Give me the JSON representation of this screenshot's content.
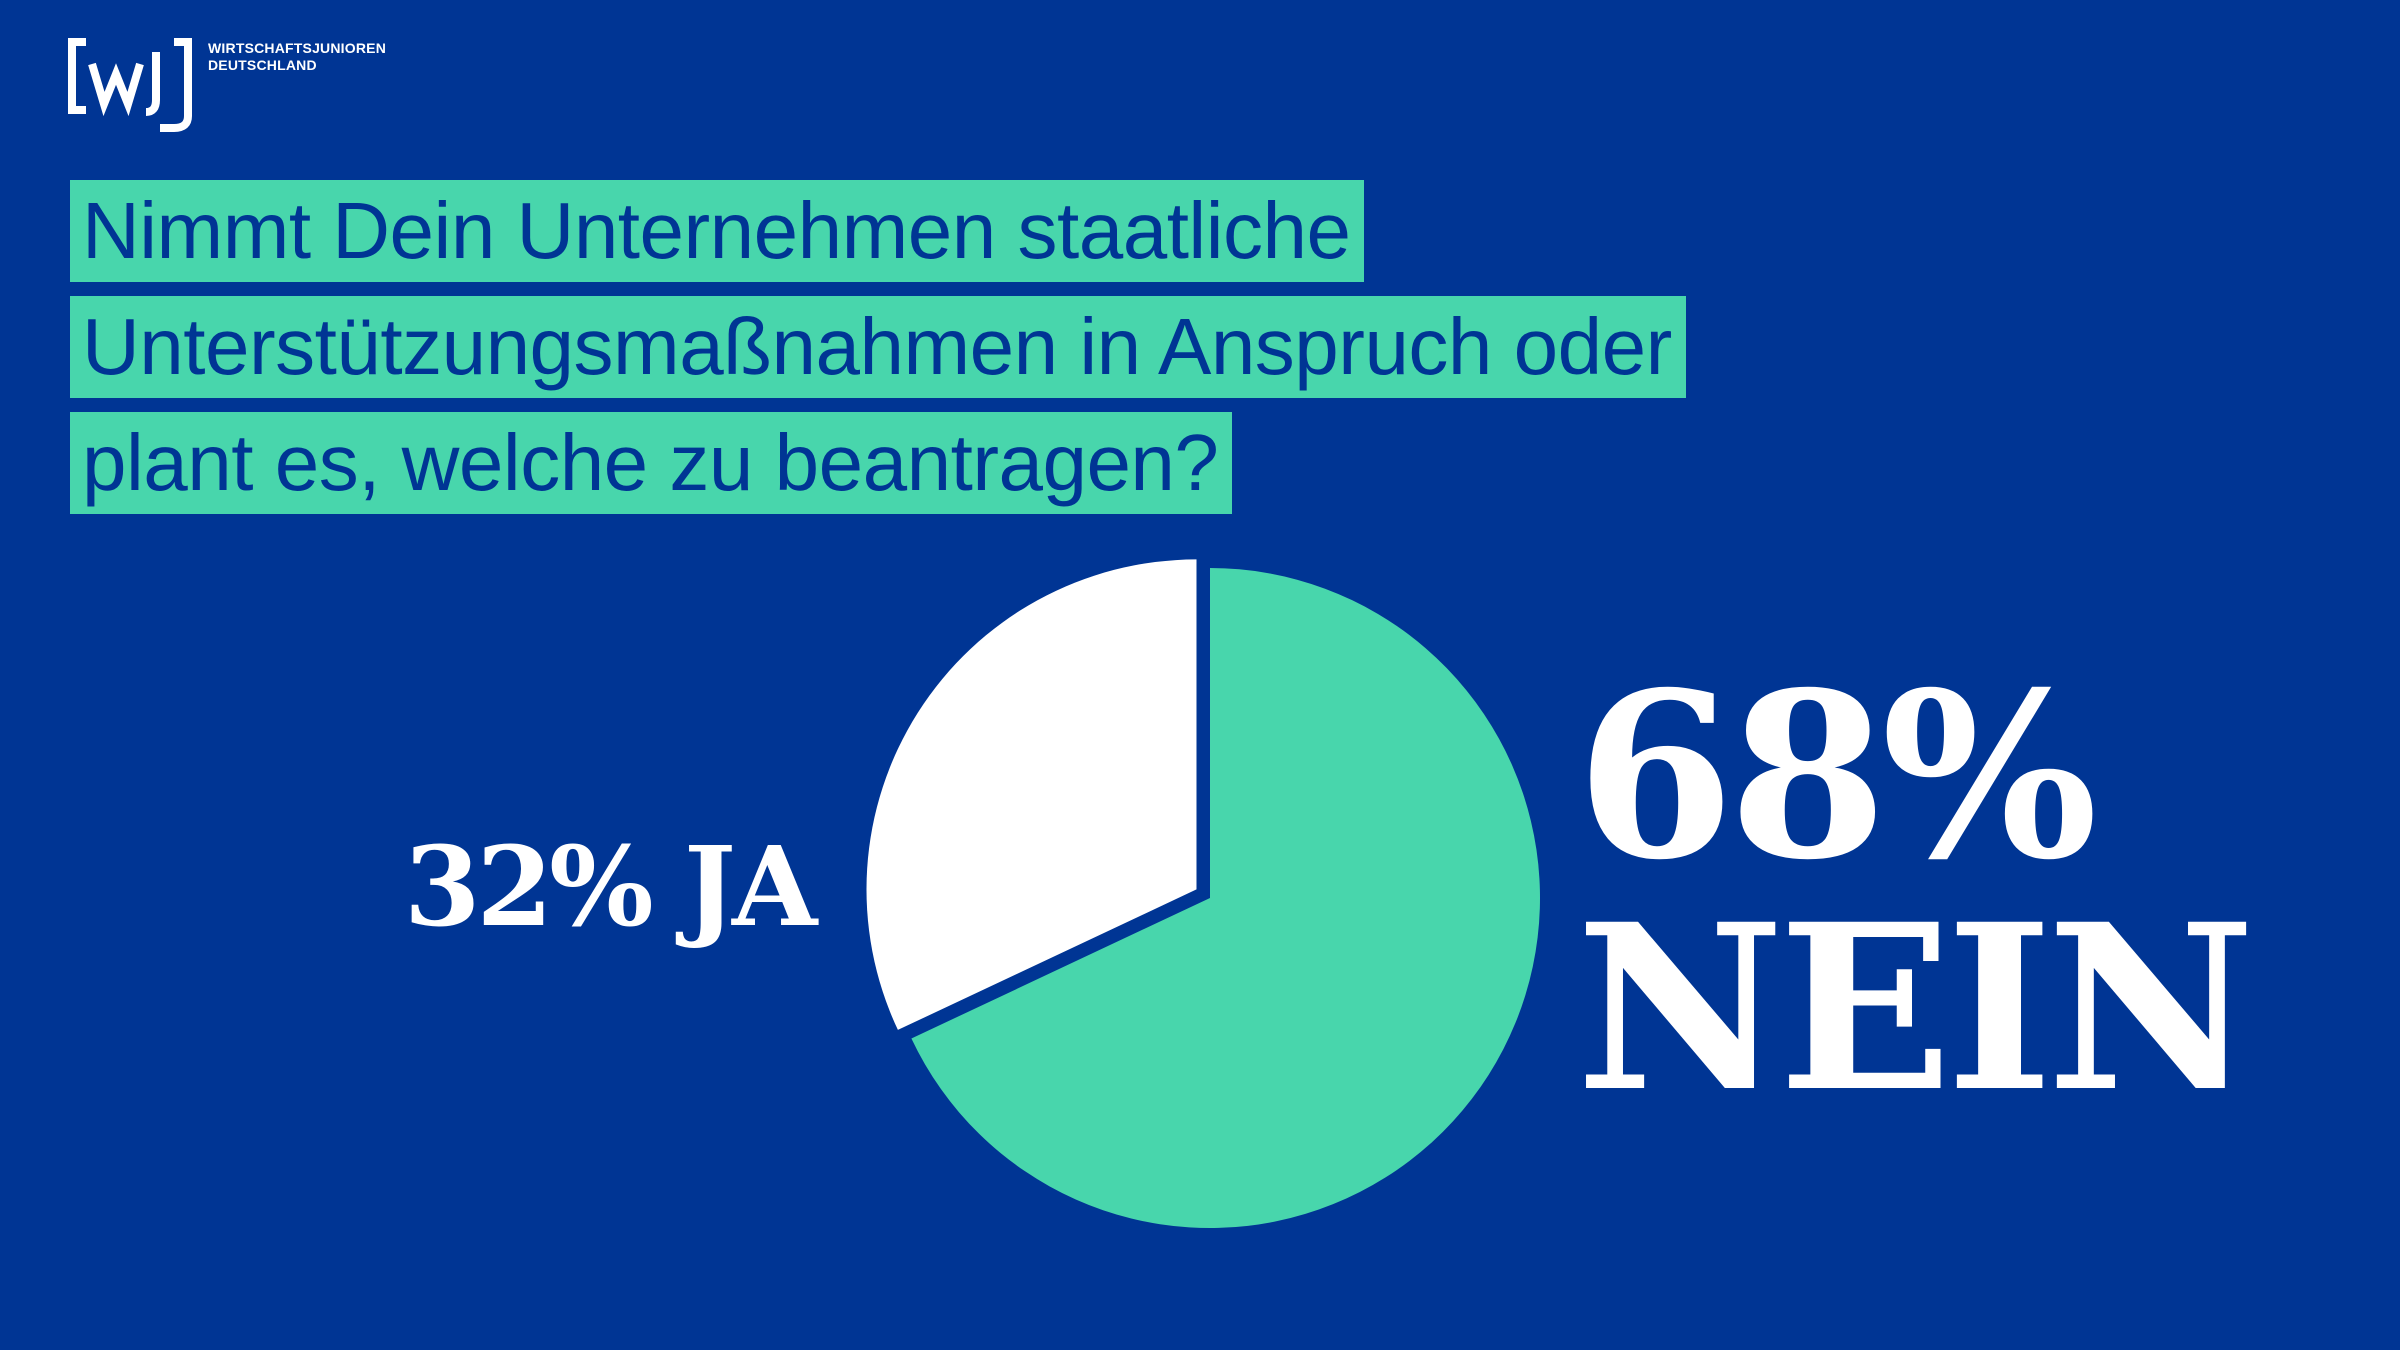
{
  "brand": {
    "logo_line1": "WIRTSCHAFTSJUNIOREN",
    "logo_line2": "DEUTSCHLAND",
    "background_color": "#003594",
    "accent_color": "#48d6ac",
    "text_color": "#ffffff"
  },
  "question": {
    "lines": [
      "Nimmt Dein Unternehmen staatliche",
      "Unterstützungsmaßnahmen in Anspruch oder",
      "plant es, welche zu beantragen?"
    ]
  },
  "chart_data": {
    "type": "pie",
    "title": "Nimmt Dein Unternehmen staatliche Unterstützungsmaßnahmen in Anspruch oder plant es, welche zu beantragen?",
    "slices": [
      {
        "label": "JA",
        "value": 32,
        "color": "#ffffff",
        "exploded": true
      },
      {
        "label": "NEIN",
        "value": 68,
        "color": "#48d6ac",
        "exploded": false
      }
    ],
    "labels": {
      "ja": "32% JA",
      "nein_value": "68%",
      "nein_label": "NEIN"
    }
  }
}
